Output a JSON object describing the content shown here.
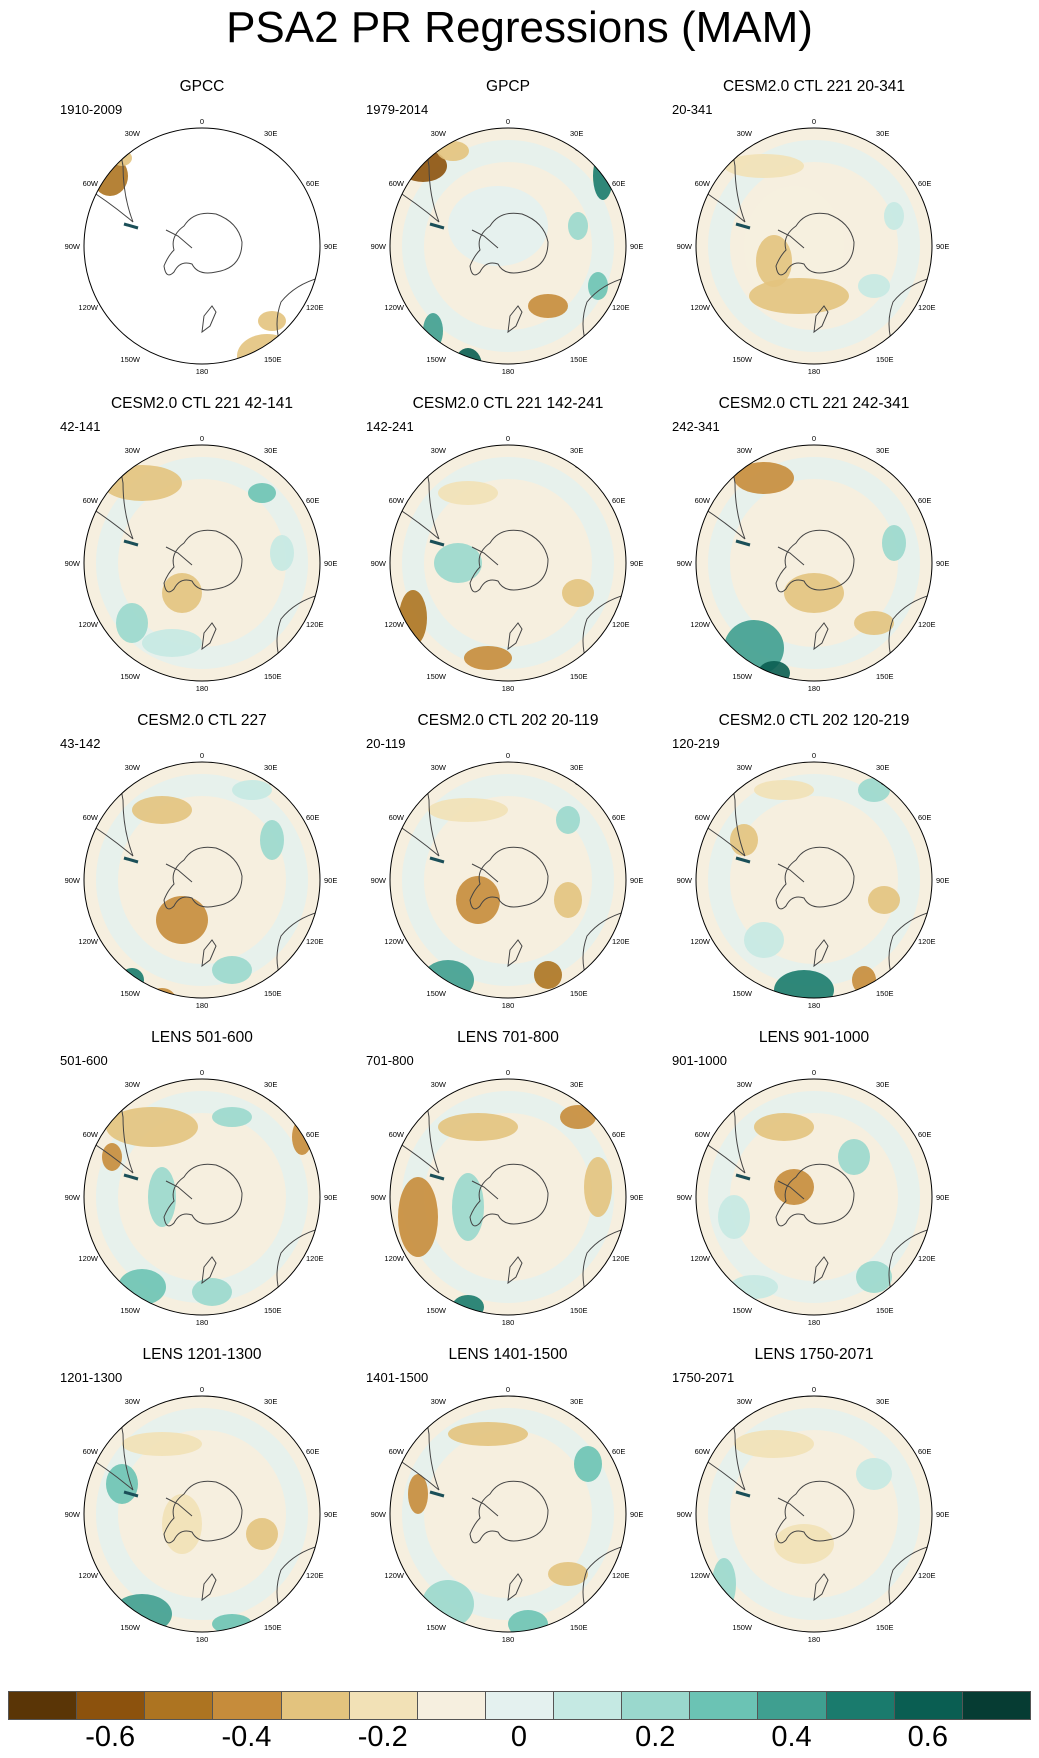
{
  "title": "PSA2 PR Regressions (MAM)",
  "map_labels": {
    "top": "0",
    "n30w": "30W",
    "n30e": "30E",
    "n60w": "60W",
    "n60e": "60E",
    "w90w": "90W",
    "e90e": "90E",
    "s120w": "120W",
    "s120e": "120E",
    "s150w": "150W",
    "s150e": "150E",
    "bottom": "180"
  },
  "panels": [
    {
      "title": "GPCC",
      "range": "1910-2009"
    },
    {
      "title": "GPCP",
      "range": "1979-2014"
    },
    {
      "title": "CESM2.0 CTL 221 20-341",
      "range": "20-341"
    },
    {
      "title": "CESM2.0 CTL 221 42-141",
      "range": "42-141"
    },
    {
      "title": "CESM2.0 CTL 221 142-241",
      "range": "142-241"
    },
    {
      "title": "CESM2.0 CTL 221 242-341",
      "range": "242-341"
    },
    {
      "title": "CESM2.0 CTL 227",
      "range": "43-142"
    },
    {
      "title": "CESM2.0 CTL 202 20-119",
      "range": "20-119"
    },
    {
      "title": "CESM2.0 CTL 202 120-219",
      "range": "120-219"
    },
    {
      "title": "LENS 501-600",
      "range": "501-600"
    },
    {
      "title": "LENS 701-800",
      "range": "701-800"
    },
    {
      "title": "LENS 901-1000",
      "range": "901-1000"
    },
    {
      "title": "LENS 1201-1300",
      "range": "1201-1300"
    },
    {
      "title": "LENS 1401-1500",
      "range": "1401-1500"
    },
    {
      "title": "LENS 1750-2071",
      "range": "1750-2071"
    }
  ],
  "colorbar": {
    "colors": [
      "#5a3506",
      "#8c520d",
      "#ad7421",
      "#c68c3b",
      "#e3c37e",
      "#f2e1b6",
      "#f6efdf",
      "#e4f1ef",
      "#c5e9e3",
      "#9ad8cd",
      "#6bc3b4",
      "#3f9f90",
      "#1a7b6d",
      "#0a5e52",
      "#063c33"
    ],
    "tick_labels": [
      "-0.6",
      "-0.4",
      "-0.2",
      "0",
      "0.2",
      "0.4",
      "0.6"
    ],
    "tick_values": [
      -0.6,
      -0.4,
      -0.2,
      0,
      0.2,
      0.4,
      0.6
    ],
    "min": -0.75,
    "max": 0.75
  }
}
